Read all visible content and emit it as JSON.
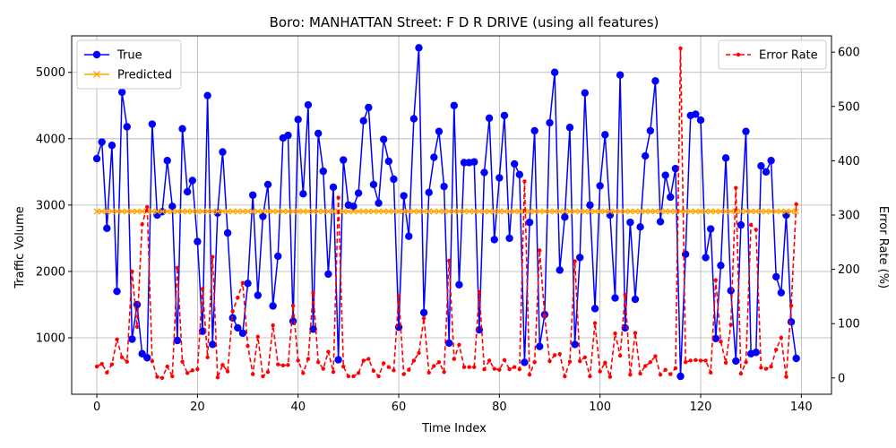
{
  "chart_data": {
    "type": "line",
    "title": "Boro: MANHATTAN Street: F D R DRIVE (using all features)",
    "xlabel": "Time Index",
    "ylabel": "Traffic Volume",
    "y2label": "Error Rate (%)",
    "xlim": [
      -5,
      146
    ],
    "ylim": [
      150,
      5550
    ],
    "y2lim": [
      -30,
      630
    ],
    "xticks": [
      0,
      20,
      40,
      60,
      80,
      100,
      120,
      140
    ],
    "yticks": [
      1000,
      2000,
      3000,
      4000,
      5000
    ],
    "y2ticks": [
      0,
      100,
      200,
      300,
      400,
      500,
      600
    ],
    "grid": true,
    "legend_left_placement": "upper-left",
    "legend_right_placement": "upper-right",
    "series": [
      {
        "name": "True",
        "axis": "left",
        "color": "#0000ff",
        "marker": "circle",
        "values": [
          3700,
          3950,
          2650,
          3900,
          1700,
          4700,
          4180,
          980,
          1500,
          760,
          700,
          4220,
          2850,
          2900,
          3670,
          2980,
          960,
          4150,
          3200,
          3370,
          2450,
          1100,
          4650,
          900,
          2880,
          3800,
          2580,
          1300,
          1150,
          1070,
          1820,
          3150,
          1640,
          2830,
          3310,
          1480,
          2230,
          4010,
          4050,
          1250,
          4290,
          3170,
          4510,
          1130,
          4080,
          3510,
          1960,
          3270,
          670,
          3680,
          3000,
          2980,
          3180,
          4270,
          4470,
          3310,
          3030,
          3990,
          3660,
          3390,
          1160,
          3140,
          2530,
          4300,
          5370,
          1380,
          3190,
          3720,
          4110,
          3280,
          920,
          4500,
          1800,
          3640,
          3640,
          3650,
          1120,
          3490,
          4310,
          2480,
          3410,
          4350,
          2500,
          3620,
          3460,
          630,
          2740,
          4120,
          870,
          1350,
          4240,
          5000,
          2020,
          2820,
          4170,
          900,
          2210,
          4690,
          3000,
          1440,
          3290,
          4060,
          2850,
          1600,
          4960,
          1150,
          2740,
          1580,
          2670,
          3740,
          4120,
          4870,
          2750,
          3450,
          3120,
          3550,
          420,
          2260,
          4350,
          4370,
          4280,
          2210,
          2640,
          990,
          2090,
          3710,
          1710,
          650,
          2700,
          4110,
          760,
          780,
          3590,
          3500,
          3670,
          1920,
          1680,
          2850,
          1240,
          690
        ],
        "min": 420,
        "max": 5370
      },
      {
        "name": "Predicted",
        "axis": "left",
        "color": "#ffa500",
        "marker": "x",
        "values": [
          2905,
          2905,
          2905,
          2905,
          2905,
          2905,
          2905,
          2905,
          2905,
          2905,
          2905,
          2905,
          2905,
          2905,
          2905,
          2905,
          2905,
          2905,
          2905,
          2905,
          2905,
          2905,
          2905,
          2905,
          2905,
          2905,
          2905,
          2905,
          2905,
          2905,
          2905,
          2905,
          2905,
          2905,
          2905,
          2905,
          2905,
          2905,
          2905,
          2905,
          2905,
          2905,
          2905,
          2905,
          2905,
          2905,
          2905,
          2905,
          2905,
          2905,
          2905,
          2905,
          2905,
          2905,
          2905,
          2905,
          2905,
          2905,
          2905,
          2905,
          2905,
          2905,
          2905,
          2905,
          2905,
          2905,
          2905,
          2905,
          2905,
          2905,
          2905,
          2905,
          2905,
          2905,
          2905,
          2905,
          2905,
          2905,
          2905,
          2905,
          2905,
          2905,
          2905,
          2905,
          2905,
          2905,
          2905,
          2905,
          2905,
          2905,
          2905,
          2905,
          2905,
          2905,
          2905,
          2905,
          2905,
          2905,
          2905,
          2905,
          2905,
          2905,
          2905,
          2905,
          2905,
          2905,
          2905,
          2905,
          2905,
          2905,
          2905,
          2905,
          2905,
          2905,
          2905,
          2905,
          2905,
          2905,
          2905,
          2905,
          2905,
          2905,
          2905,
          2905,
          2905,
          2905,
          2905,
          2905,
          2905,
          2905,
          2905,
          2905,
          2905,
          2905,
          2905,
          2905,
          2905,
          2905,
          2905,
          2905
        ]
      },
      {
        "name": "Error Rate",
        "axis": "right",
        "color": "#ff0000",
        "marker": "small-circle",
        "linestyle": "dashed",
        "values": [
          21,
          26,
          10,
          25,
          71,
          38,
          30,
          196,
          94,
          283,
          315,
          31,
          2,
          0,
          21,
          3,
          203,
          30,
          9,
          14,
          16,
          164,
          38,
          223,
          1,
          24,
          12,
          123,
          148,
          175,
          59,
          7,
          76,
          3,
          11,
          97,
          25,
          23,
          24,
          133,
          32,
          9,
          35,
          157,
          29,
          17,
          48,
          11,
          332,
          21,
          3,
          3,
          9,
          32,
          35,
          13,
          3,
          27,
          20,
          14,
          150,
          7,
          15,
          32,
          46,
          110,
          10,
          22,
          29,
          11,
          216,
          35,
          61,
          20,
          20,
          20,
          158,
          16,
          32,
          17,
          15,
          33,
          16,
          20,
          16,
          362,
          6,
          29,
          235,
          115,
          31,
          42,
          44,
          3,
          30,
          215,
          31,
          38,
          3,
          101,
          12,
          28,
          2,
          82,
          41,
          153,
          6,
          83,
          8,
          22,
          29,
          40,
          6,
          15,
          7,
          18,
          607,
          29,
          32,
          33,
          32,
          32,
          10,
          180,
          67,
          28,
          98,
          350,
          8,
          29,
          282,
          273,
          19,
          17,
          21,
          52,
          74,
          2,
          133,
          320
        ]
      }
    ]
  }
}
